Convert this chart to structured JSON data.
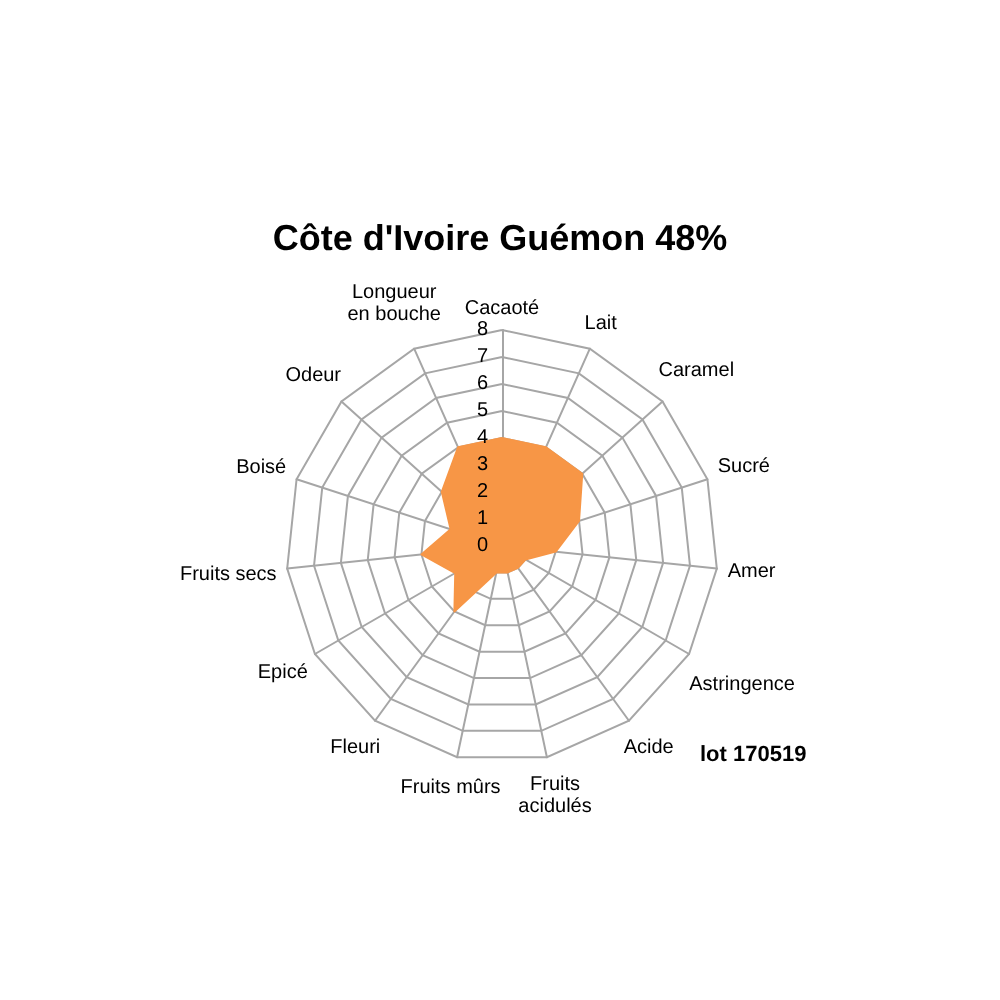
{
  "chart_data": {
    "type": "radar",
    "title": "Côte d'Ivoire Guémon 48%",
    "categories": [
      "Cacaoté",
      "Lait",
      "Caramel",
      "Sucré",
      "Amer",
      "Astringence",
      "Acide",
      "Fruits acidulés",
      "Fruits mûrs",
      "Fleuri",
      "Epicé",
      "Fruits secs",
      "Boisé",
      "Odeur",
      "Longueur en bouche"
    ],
    "series": [
      {
        "color": "#f79646",
        "values": [
          4,
          4,
          4,
          3,
          2,
          1,
          1,
          1,
          1,
          3,
          2,
          3,
          2,
          3,
          4
        ]
      }
    ],
    "ylim": [
      0,
      8
    ],
    "yticks": [
      0,
      1,
      2,
      3,
      4,
      5,
      6,
      7,
      8
    ],
    "annotations": [
      "lot 170519"
    ],
    "marker": "none"
  }
}
